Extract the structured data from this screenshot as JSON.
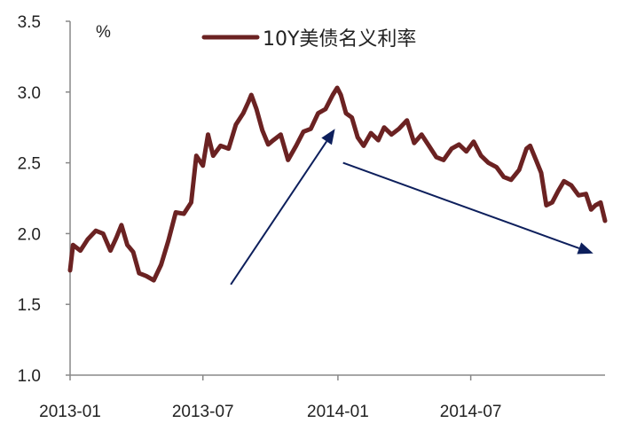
{
  "chart_data": {
    "type": "line",
    "unit_label": "%",
    "xlabel": "",
    "ylabel": "",
    "ylim": [
      1.0,
      3.5
    ],
    "yticks": [
      1.0,
      1.5,
      2.0,
      2.5,
      3.0,
      3.5
    ],
    "ytick_labels": [
      "1.0",
      "1.5",
      "2.0",
      "2.5",
      "3.0",
      "3.5"
    ],
    "xlim": [
      "2013-01-01",
      "2014-12-31"
    ],
    "xticks": [
      "2013-01-01",
      "2013-07-01",
      "2014-01-01",
      "2014-07-01"
    ],
    "xtick_labels": [
      "2013-01",
      "2013-07",
      "2014-01",
      "2014-07"
    ],
    "grid": false,
    "legend_position": "top-center",
    "series": [
      {
        "name": "10Y美债名义利率",
        "color": "#6b2222",
        "points": [
          [
            "2013-01-01",
            1.74
          ],
          [
            "2013-01-05",
            1.92
          ],
          [
            "2013-01-15",
            1.88
          ],
          [
            "2013-01-25",
            1.96
          ],
          [
            "2013-02-05",
            2.02
          ],
          [
            "2013-02-15",
            2.0
          ],
          [
            "2013-02-25",
            1.88
          ],
          [
            "2013-03-05",
            1.97
          ],
          [
            "2013-03-12",
            2.06
          ],
          [
            "2013-03-20",
            1.92
          ],
          [
            "2013-03-28",
            1.87
          ],
          [
            "2013-04-05",
            1.72
          ],
          [
            "2013-04-15",
            1.7
          ],
          [
            "2013-04-25",
            1.67
          ],
          [
            "2013-05-05",
            1.78
          ],
          [
            "2013-05-15",
            1.95
          ],
          [
            "2013-05-25",
            2.15
          ],
          [
            "2013-06-05",
            2.14
          ],
          [
            "2013-06-15",
            2.22
          ],
          [
            "2013-06-22",
            2.55
          ],
          [
            "2013-07-01",
            2.48
          ],
          [
            "2013-07-08",
            2.7
          ],
          [
            "2013-07-15",
            2.55
          ],
          [
            "2013-07-25",
            2.62
          ],
          [
            "2013-08-05",
            2.6
          ],
          [
            "2013-08-15",
            2.77
          ],
          [
            "2013-08-25",
            2.85
          ],
          [
            "2013-09-01",
            2.93
          ],
          [
            "2013-09-05",
            2.98
          ],
          [
            "2013-09-12",
            2.88
          ],
          [
            "2013-09-20",
            2.73
          ],
          [
            "2013-09-28",
            2.63
          ],
          [
            "2013-10-05",
            2.66
          ],
          [
            "2013-10-15",
            2.7
          ],
          [
            "2013-10-25",
            2.52
          ],
          [
            "2013-11-05",
            2.62
          ],
          [
            "2013-11-15",
            2.72
          ],
          [
            "2013-11-25",
            2.74
          ],
          [
            "2013-12-05",
            2.85
          ],
          [
            "2013-12-15",
            2.88
          ],
          [
            "2013-12-25",
            2.98
          ],
          [
            "2013-12-31",
            3.03
          ],
          [
            "2014-01-05",
            2.98
          ],
          [
            "2014-01-12",
            2.85
          ],
          [
            "2014-01-20",
            2.82
          ],
          [
            "2014-01-28",
            2.68
          ],
          [
            "2014-02-05",
            2.62
          ],
          [
            "2014-02-15",
            2.71
          ],
          [
            "2014-02-25",
            2.66
          ],
          [
            "2014-03-05",
            2.75
          ],
          [
            "2014-03-15",
            2.7
          ],
          [
            "2014-03-25",
            2.74
          ],
          [
            "2014-04-05",
            2.8
          ],
          [
            "2014-04-15",
            2.64
          ],
          [
            "2014-04-25",
            2.7
          ],
          [
            "2014-05-05",
            2.62
          ],
          [
            "2014-05-15",
            2.54
          ],
          [
            "2014-05-25",
            2.52
          ],
          [
            "2014-06-05",
            2.6
          ],
          [
            "2014-06-15",
            2.63
          ],
          [
            "2014-06-25",
            2.58
          ],
          [
            "2014-07-05",
            2.65
          ],
          [
            "2014-07-15",
            2.55
          ],
          [
            "2014-07-25",
            2.5
          ],
          [
            "2014-08-05",
            2.47
          ],
          [
            "2014-08-15",
            2.4
          ],
          [
            "2014-08-25",
            2.38
          ],
          [
            "2014-09-05",
            2.45
          ],
          [
            "2014-09-15",
            2.6
          ],
          [
            "2014-09-20",
            2.62
          ],
          [
            "2014-09-28",
            2.52
          ],
          [
            "2014-10-05",
            2.43
          ],
          [
            "2014-10-12",
            2.2
          ],
          [
            "2014-10-20",
            2.22
          ],
          [
            "2014-10-28",
            2.3
          ],
          [
            "2014-11-05",
            2.37
          ],
          [
            "2014-11-15",
            2.34
          ],
          [
            "2014-11-25",
            2.27
          ],
          [
            "2014-12-05",
            2.28
          ],
          [
            "2014-12-12",
            2.17
          ],
          [
            "2014-12-18",
            2.2
          ],
          [
            "2014-12-25",
            2.22
          ],
          [
            "2014-12-31",
            2.09
          ]
        ]
      }
    ],
    "annotations": [
      {
        "type": "arrow",
        "color": "#0d1f5c",
        "from": [
          "2013-08-08",
          1.64
        ],
        "to": [
          "2013-12-28",
          2.74
        ]
      },
      {
        "type": "arrow",
        "color": "#0d1f5c",
        "from": [
          "2014-01-08",
          2.5
        ],
        "to": [
          "2014-12-15",
          1.86
        ]
      }
    ]
  }
}
